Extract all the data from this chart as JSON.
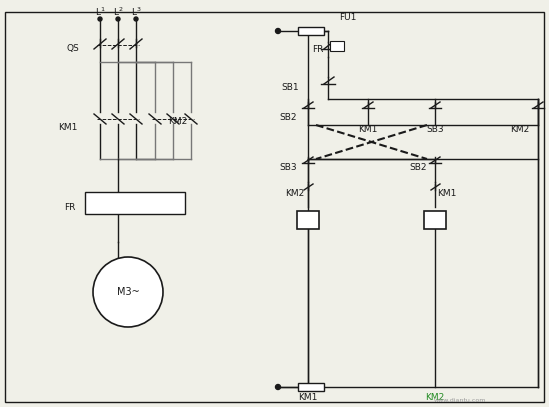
{
  "bg_color": "#f0f0e8",
  "lc": "#1a1a1a",
  "glc": "#777777",
  "fig_width": 5.49,
  "fig_height": 4.07,
  "dpi": 100,
  "border": [
    5,
    5,
    544,
    395
  ]
}
